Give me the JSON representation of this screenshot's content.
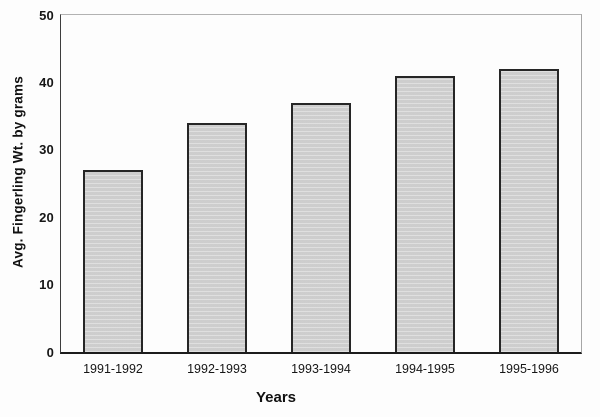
{
  "chart_data": {
    "type": "bar",
    "title": "",
    "categories": [
      "1991-1992",
      "1992-1993",
      "1993-1994",
      "1994-1995",
      "1995-1996"
    ],
    "values": [
      27,
      34,
      37,
      41,
      42
    ],
    "xlabel": "Years",
    "ylabel": "Avg. Fingerling Wt. by grams",
    "ylim": [
      0,
      50
    ],
    "yticks": [
      0,
      10,
      20,
      30,
      40,
      50
    ],
    "grid": false,
    "legend": "none",
    "bar_fill": "#d4d4d4",
    "bar_border": "#262626"
  }
}
